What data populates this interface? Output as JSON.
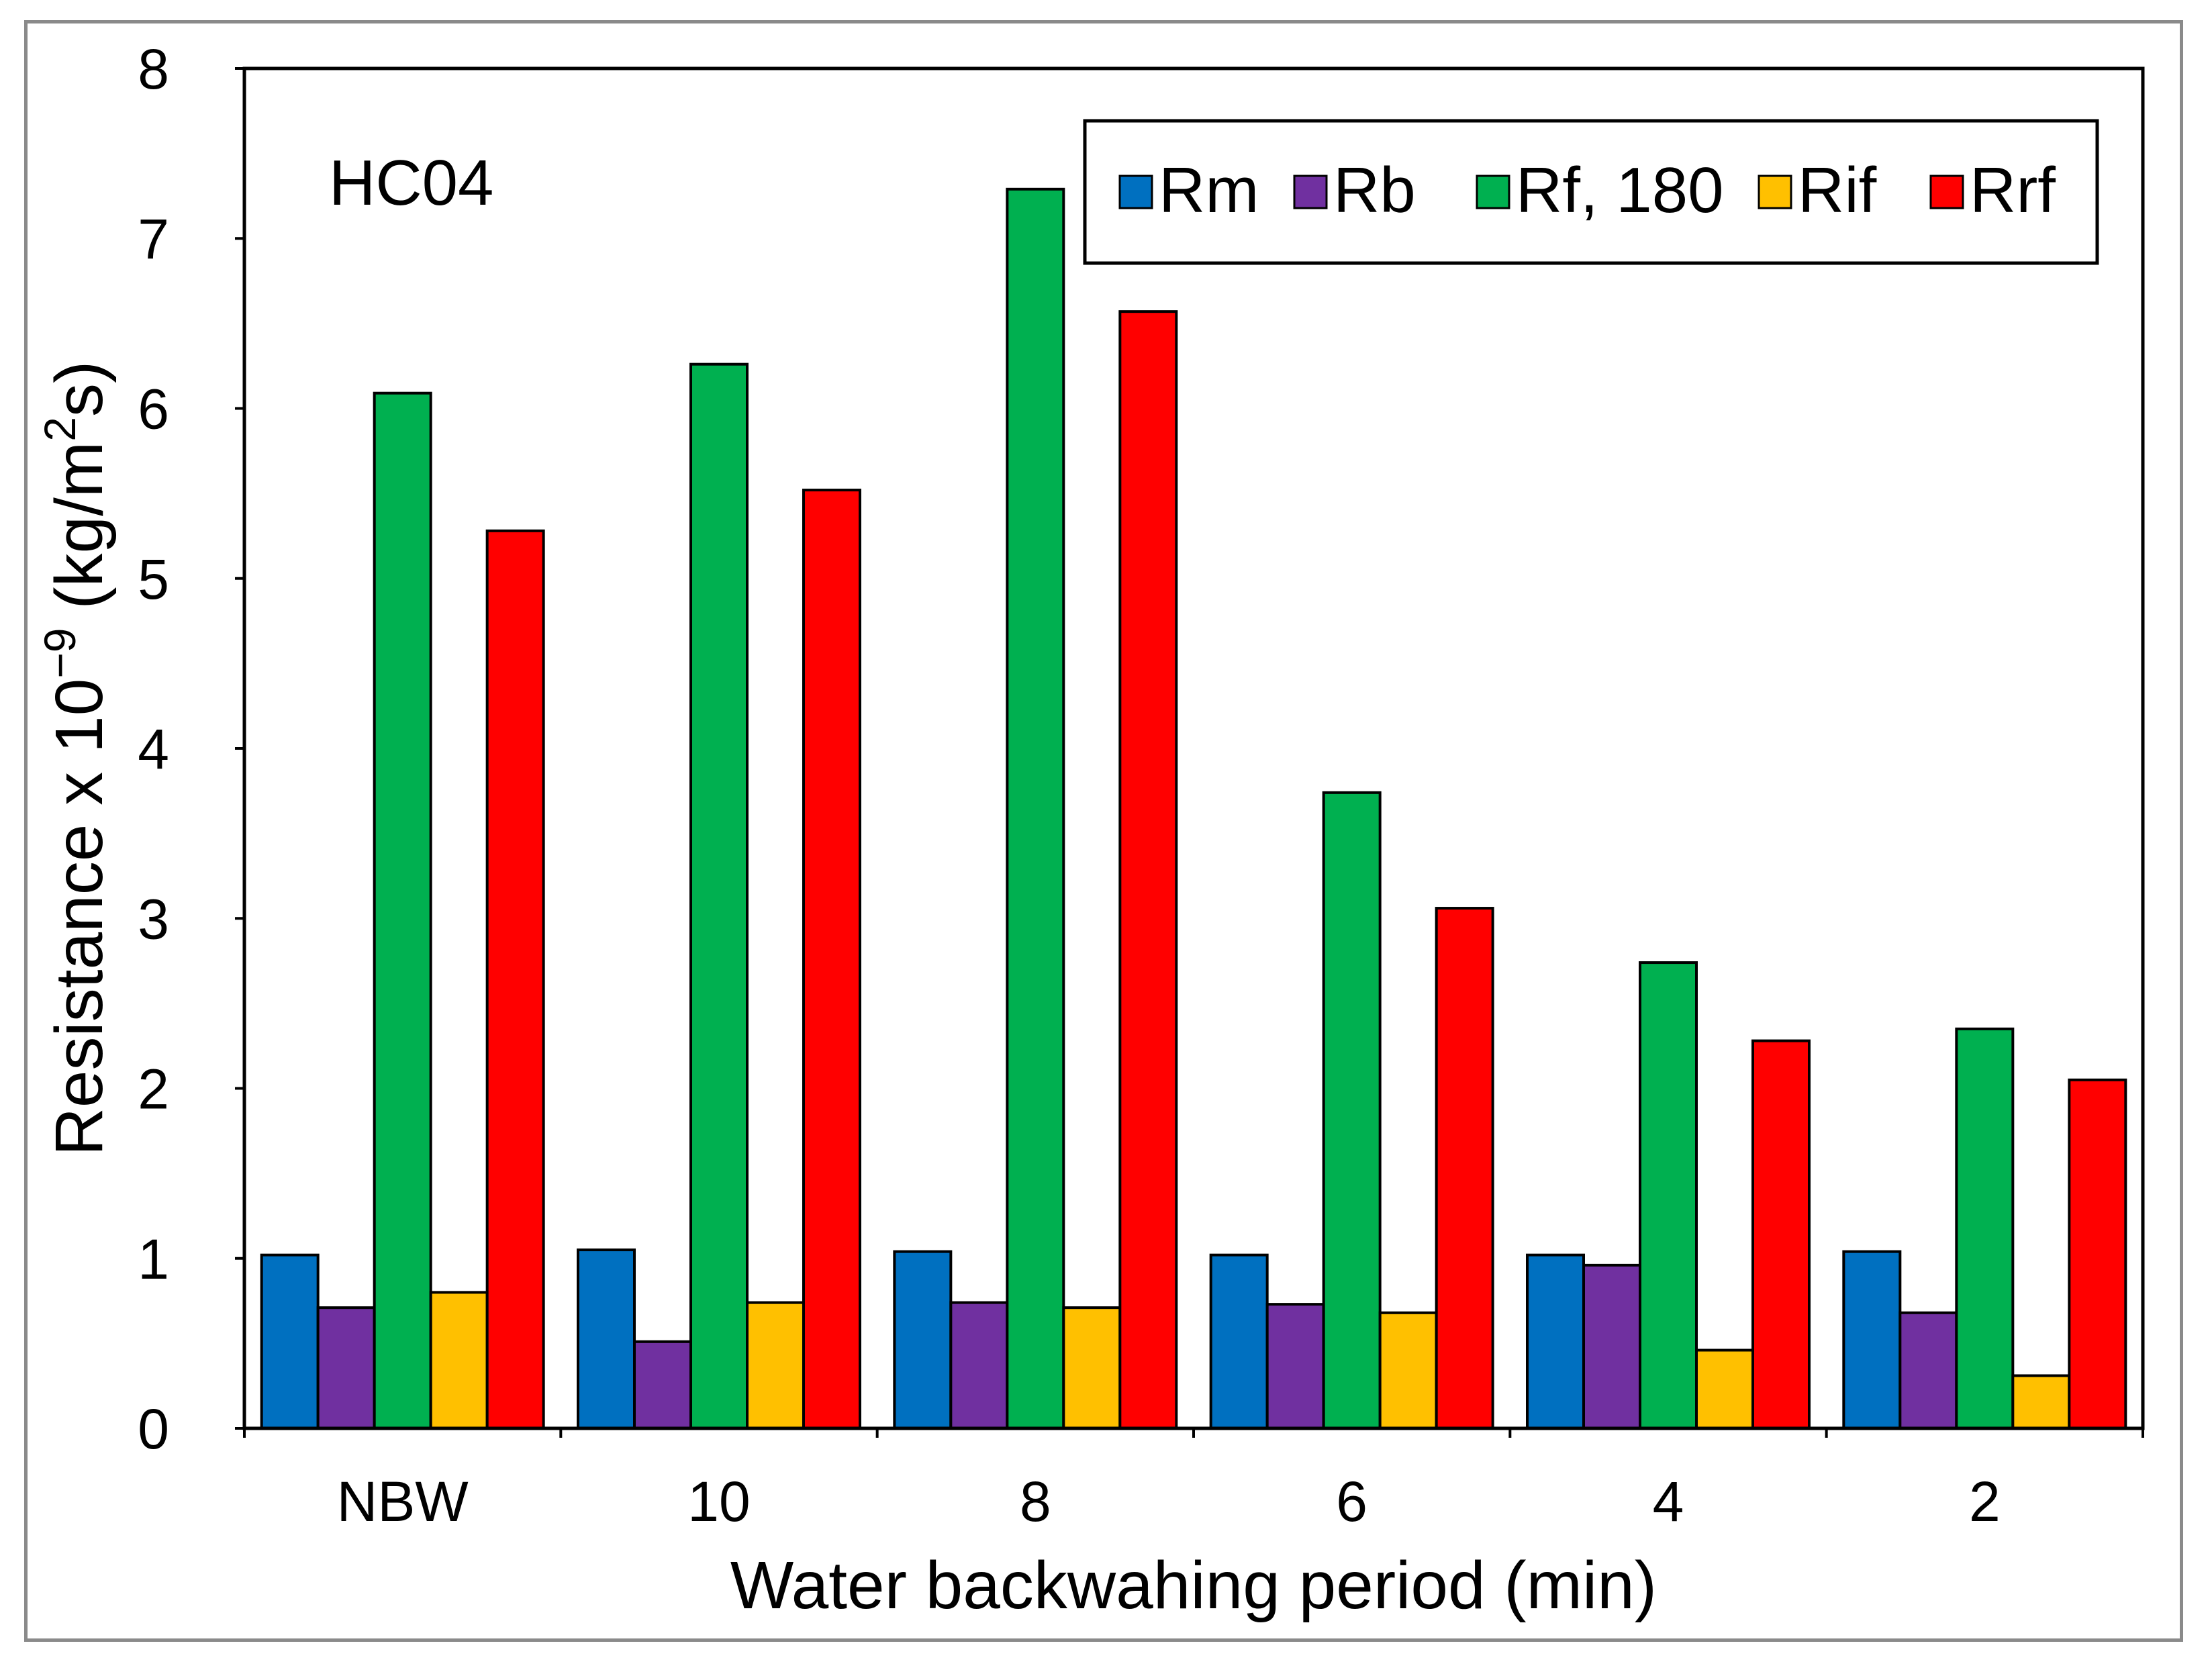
{
  "chart_data": {
    "type": "bar",
    "annotation": "HC04",
    "xlabel": "Water backwahing period (min)",
    "ylabel": {
      "prefix": "Resistance x 10",
      "exp": "−9",
      "mid": " (kg/m",
      "sup": "2",
      "suffix": "s)"
    },
    "ylim": [
      0,
      8
    ],
    "yticks": [
      "0",
      "1",
      "2",
      "3",
      "4",
      "5",
      "6",
      "7",
      "8"
    ],
    "categories": [
      "NBW",
      "10",
      "8",
      "6",
      "4",
      "2"
    ],
    "legend_position": "top-right",
    "series": [
      {
        "name": "Rm",
        "color": "#0070c0",
        "values": [
          1.02,
          1.05,
          1.04,
          1.02,
          1.02,
          1.04
        ]
      },
      {
        "name": "Rb",
        "color": "#7030a0",
        "values": [
          0.71,
          0.51,
          0.74,
          0.73,
          0.96,
          0.68
        ]
      },
      {
        "name": "Rf, 180",
        "color": "#00b050",
        "values": [
          6.09,
          6.26,
          7.29,
          3.74,
          2.74,
          2.35
        ]
      },
      {
        "name": "Rif",
        "color": "#ffc000",
        "values": [
          0.8,
          0.74,
          0.71,
          0.68,
          0.46,
          0.31
        ]
      },
      {
        "name": "Rrf",
        "color": "#ff0000",
        "values": [
          5.28,
          5.52,
          6.57,
          3.06,
          2.28,
          2.05
        ]
      }
    ]
  }
}
